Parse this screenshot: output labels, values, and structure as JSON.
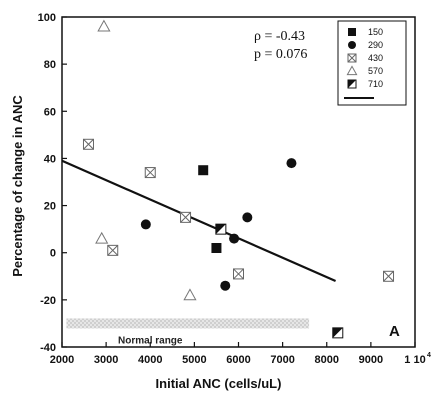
{
  "chart_data": {
    "type": "scatter",
    "xlabel": "Initial ANC (cells/uL)",
    "ylabel": "Percentage of change in ANC",
    "xlim": [
      2000,
      10000
    ],
    "ylim": [
      -40,
      100
    ],
    "x_ticks": [
      2000,
      3000,
      4000,
      5000,
      6000,
      7000,
      8000,
      9000,
      10000
    ],
    "x_tick_labels": [
      "2000",
      "3000",
      "4000",
      "5000",
      "6000",
      "7000",
      "8000",
      "9000",
      "1 10"
    ],
    "x_tick_exponent": "4",
    "y_ticks": [
      -40,
      -20,
      0,
      20,
      40,
      60,
      80,
      100
    ],
    "y_tick_labels": [
      "-40",
      "-20",
      "0",
      "20",
      "40",
      "60",
      "80",
      "100"
    ],
    "grid": false,
    "legend_position": "top-right",
    "annotations": {
      "rho": "ρ = -0.43",
      "p": "p = 0.076",
      "panel": "A",
      "normal_range": "Normal range"
    },
    "normal_range_band": {
      "x_start": 2100,
      "x_end": 7600,
      "y": -30
    },
    "fit_line": {
      "x": [
        2000,
        8200
      ],
      "y": [
        39,
        -12
      ]
    },
    "series": [
      {
        "name": "150",
        "marker": "square-filled",
        "points": [
          [
            5200,
            35
          ],
          [
            5500,
            2
          ]
        ]
      },
      {
        "name": "290",
        "marker": "circle-filled",
        "points": [
          [
            3900,
            12
          ],
          [
            5900,
            6
          ],
          [
            6200,
            15
          ],
          [
            5700,
            -14
          ],
          [
            7200,
            38
          ]
        ]
      },
      {
        "name": "430",
        "marker": "square-x",
        "points": [
          [
            2600,
            46
          ],
          [
            4000,
            34
          ],
          [
            3150,
            1
          ],
          [
            4800,
            15
          ],
          [
            6000,
            -9
          ],
          [
            9400,
            -10
          ]
        ]
      },
      {
        "name": "570",
        "marker": "triangle-open",
        "points": [
          [
            2950,
            96
          ],
          [
            2900,
            6
          ],
          [
            4900,
            -18
          ]
        ]
      },
      {
        "name": "710",
        "marker": "square-half",
        "points": [
          [
            5600,
            10
          ],
          [
            8250,
            -34
          ]
        ]
      }
    ]
  }
}
